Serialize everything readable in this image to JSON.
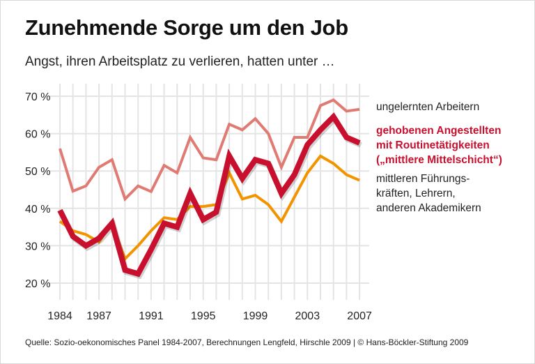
{
  "title": "Zunehmende Sorge um den Job",
  "subtitle": "Angst, ihren Arbeitsplatz zu verlieren, hatten unter …",
  "source": "Quelle: Sozio-oekonomisches Panel 1984-2007, Berechnungen Lengfeld, Hirschle 2009  | © Hans-Böckler-Stiftung 2009",
  "chart_data": {
    "type": "line",
    "x": [
      1984,
      1985,
      1986,
      1987,
      1988,
      1989,
      1990,
      1991,
      1992,
      1993,
      1994,
      1995,
      1996,
      1997,
      1998,
      1999,
      2000,
      2001,
      2002,
      2003,
      2004,
      2005,
      2006,
      2007
    ],
    "xticks": [
      "1984",
      "1987",
      "1991",
      "1995",
      "1999",
      "2003",
      "2007"
    ],
    "yticks": [
      "20 %",
      "30 %",
      "40 %",
      "50 %",
      "60 %",
      "70 %"
    ],
    "ylim": [
      18,
      72
    ],
    "grid": true,
    "series": [
      {
        "name": "ungelernten Arbeitern",
        "color": "#e07b74",
        "values": [
          56,
          44.6,
          46,
          51,
          53,
          42.5,
          46,
          44.5,
          51.5,
          49.5,
          59,
          53.5,
          53,
          62.5,
          61,
          64,
          60,
          51,
          59,
          59,
          67.5,
          69,
          66,
          66.5
        ]
      },
      {
        "name": "gehobenen Angestellten mit Routinetätigkeiten („mittlere Mittelschicht“)",
        "color": "#c8102e",
        "values": [
          39.5,
          32.5,
          30,
          32,
          36,
          23.5,
          22.5,
          29,
          36,
          35,
          44,
          37,
          39,
          54,
          48,
          53,
          52,
          44,
          49,
          57,
          61,
          64.5,
          59,
          57.5
        ]
      },
      {
        "name": "mittleren Führungs-kräften, Lehrern, anderen Akademikern",
        "color": "#f29400",
        "values": [
          36.5,
          34,
          33,
          31,
          36,
          26.5,
          30,
          34,
          37.5,
          37,
          40.5,
          40.5,
          41,
          49.5,
          42.5,
          43.5,
          41,
          36.5,
          43,
          49.5,
          54,
          52,
          49,
          47.5
        ]
      }
    ],
    "legend_lines": [
      [
        "ungelernten Arbeitern"
      ],
      [
        "gehobenen Angestellten",
        "mit Routinetätigkeiten",
        "(„mittlere Mittelschicht“)"
      ],
      [
        "mittleren Führungs-",
        "kräften, Lehrern,",
        "anderen Akademikern"
      ]
    ]
  }
}
